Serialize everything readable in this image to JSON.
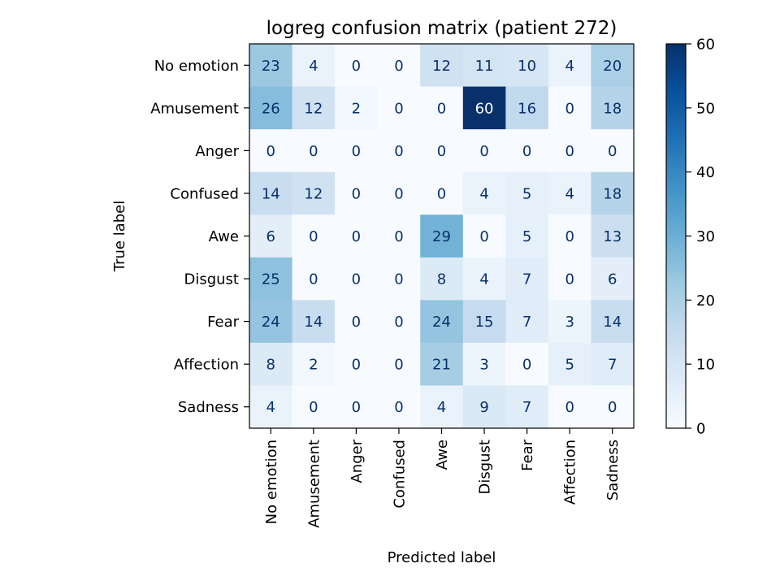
{
  "chart_data": {
    "type": "heatmap",
    "title": "logreg confusion matrix (patient 272)",
    "xlabel": "Predicted label",
    "ylabel": "True label",
    "x_categories": [
      "No emotion",
      "Amusement",
      "Anger",
      "Confused",
      "Awe",
      "Disgust",
      "Fear",
      "Affection",
      "Sadness"
    ],
    "y_categories": [
      "No emotion",
      "Amusement",
      "Anger",
      "Confused",
      "Awe",
      "Disgust",
      "Fear",
      "Affection",
      "Sadness"
    ],
    "values": [
      [
        23,
        4,
        0,
        0,
        12,
        11,
        10,
        4,
        20
      ],
      [
        26,
        12,
        2,
        0,
        0,
        60,
        16,
        0,
        18
      ],
      [
        0,
        0,
        0,
        0,
        0,
        0,
        0,
        0,
        0
      ],
      [
        14,
        12,
        0,
        0,
        0,
        4,
        5,
        4,
        18
      ],
      [
        6,
        0,
        0,
        0,
        29,
        0,
        5,
        0,
        13
      ],
      [
        25,
        0,
        0,
        0,
        8,
        4,
        7,
        0,
        6
      ],
      [
        24,
        14,
        0,
        0,
        24,
        15,
        7,
        3,
        14
      ],
      [
        8,
        2,
        0,
        0,
        21,
        3,
        0,
        5,
        7
      ],
      [
        4,
        0,
        0,
        0,
        4,
        9,
        7,
        0,
        0
      ]
    ],
    "colorbar": {
      "min": 0,
      "max": 60,
      "ticks": [
        0,
        10,
        20,
        30,
        40,
        50,
        60
      ],
      "colormap": "Blues"
    },
    "grid": false,
    "legend": "colorbar-right"
  }
}
